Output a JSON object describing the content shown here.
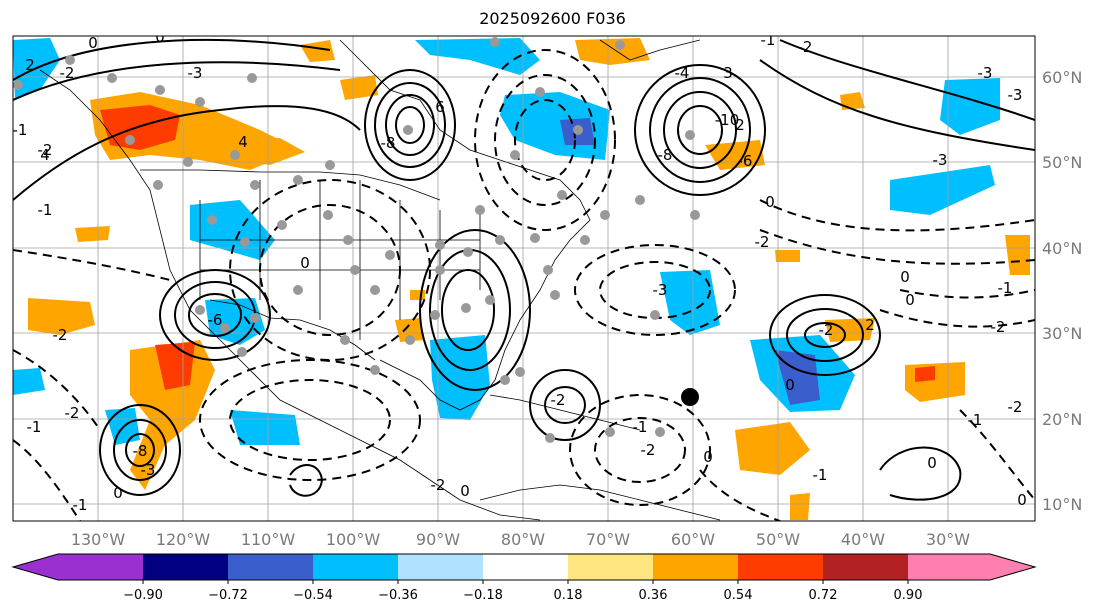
{
  "title": "2025092600 F036",
  "longitude_labels": [
    "130°W",
    "120°W",
    "110°W",
    "100°W",
    "90°W",
    "80°W",
    "70°W",
    "60°W",
    "50°W",
    "40°W",
    "30°W"
  ],
  "latitude_labels": [
    "60°N",
    "50°N",
    "40°N",
    "30°N",
    "20°N",
    "10°N"
  ],
  "colorbar": {
    "ticks": [
      "−0.90",
      "−0.72",
      "−0.54",
      "−0.36",
      "−0.18",
      "0.18",
      "0.36",
      "0.54",
      "0.72",
      "0.90"
    ],
    "colors": [
      "#9b30d0",
      "#000080",
      "#3a5fcd",
      "#00bfff",
      "#b0e2ff",
      "#ffffff",
      "#ffe680",
      "#ffa500",
      "#ff3c00",
      "#b22222",
      "#ff80b0"
    ]
  },
  "contour_labels": [
    "0",
    "0",
    "-2",
    "-3",
    "4",
    "2",
    "-1",
    "-2",
    "3",
    "2",
    "-1",
    "6",
    "-8",
    "-1",
    "-4",
    "-10",
    "-8",
    "-6",
    "-2",
    "-3",
    "4",
    "0",
    "-2",
    "-3",
    "0",
    "0",
    "-1",
    "-2",
    "-2",
    "-1",
    "0",
    "-3",
    "-1",
    "-2",
    "-1",
    "-2",
    "-8",
    "-3",
    "-2",
    "0",
    "-1",
    "0",
    "-2",
    "0",
    "-6",
    "-2",
    "-2",
    "0",
    "0",
    "-1",
    "0",
    "2",
    "-3"
  ],
  "colors": {
    "land_shading": "#00bfff",
    "warm_shading": "#ffa500",
    "hot_shading": "#ff3c00",
    "cold_shading": "#3a5fcd",
    "station_dot": "#999999",
    "storm_marker": "#000000"
  }
}
